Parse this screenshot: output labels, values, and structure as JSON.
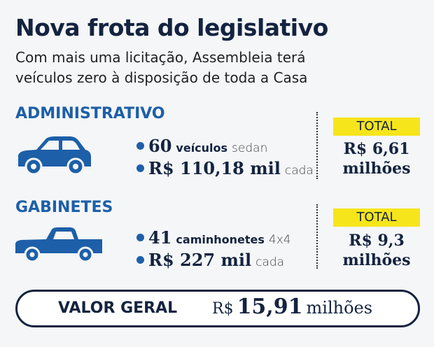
{
  "title": "Nova frota do legislativo",
  "subtitle": [
    "Com mais uma licitação, Assembleia terá",
    "veículos zero à disposição de toda a Casa"
  ],
  "sections": [
    {
      "heading": "ADMINISTRATIVO",
      "items": [
        {
          "number": "60",
          "unit": "veículos",
          "detail": "sedan"
        },
        {
          "number": "R$ 110,18 mil",
          "detail": "cada"
        }
      ],
      "total_label": "TOTAL",
      "total": "R$ 6,61",
      "total_unit": "milhões"
    },
    {
      "heading": "GABINETES",
      "items": [
        {
          "number": "41",
          "unit": "caminhonetes",
          "detail": "4x4"
        },
        {
          "number": "R$ 227 mil",
          "detail": "cada"
        }
      ],
      "total_label": "TOTAL",
      "total": "R$ 9,3",
      "total_unit": "milhões"
    }
  ],
  "footer": {
    "label": "VALOR GERAL",
    "currency": "R$",
    "amount": "15,91",
    "unit": "milhões"
  }
}
